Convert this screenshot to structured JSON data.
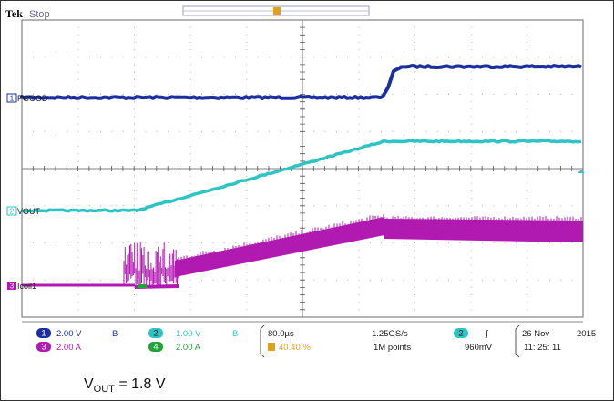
{
  "scope": {
    "brand": "Tek",
    "run_state": "Stop",
    "trigger_marker": "T",
    "colors": {
      "ch1": "#1b2f9e",
      "ch2": "#2ec4c4",
      "ch3": "#b01ab0",
      "ch4": "#23a33a",
      "grid_dot": "#9a9a9a",
      "trigger": "#e0a21a"
    }
  },
  "channels": [
    {
      "num": "1",
      "label": "PGOOD"
    },
    {
      "num": "2",
      "label": "VOUT"
    },
    {
      "num": "3",
      "label": "Icoil1"
    }
  ],
  "status": {
    "ch1_num": "1",
    "ch1_scale": "2.00 V",
    "ch1_bw": "B",
    "ch3_num": "3",
    "ch3_scale": "2.00 A",
    "ch2_num": "2",
    "ch2_scale": "1.00 V",
    "ch2_bw": "B",
    "ch4_num": "4",
    "ch4_scale": "2.00 A",
    "horiz_scale": "80.0µs",
    "trigger_pos": "40.40 %",
    "sample_rate": "1.25GS/s",
    "record_length": "1M points",
    "trig_ch": "2",
    "trig_slope": "∫",
    "trig_level": "960mV",
    "date": "26 Nov",
    "year": "2015",
    "time": "11: 25: 11"
  },
  "caption": {
    "v_main": "V",
    "v_sub": "OUT",
    "v_rest": " = 1.8 V"
  }
}
